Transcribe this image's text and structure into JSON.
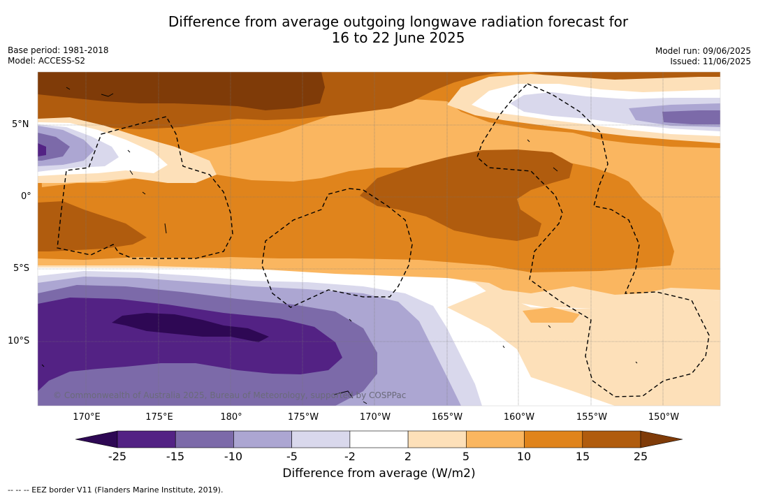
{
  "title_line1": "Difference from average outgoing longwave radiation forecast for",
  "title_line2": "16 to 22 June 2025",
  "base_period": "Base period: 1981-2018",
  "model": "Model: ACCESS-S2",
  "model_run": "Model run: 09/06/2025",
  "issued": "Issued: 11/06/2025",
  "lat_labels": [
    "5°N",
    "0°",
    "5°S",
    "10°S"
  ],
  "lon_labels": [
    "170°E",
    "175°E",
    "180°",
    "175°W",
    "170°W",
    "165°W",
    "160°W",
    "155°W",
    "150°W"
  ],
  "copyright": "© Commonwealth of Australia 2025, Bureau of Meteorology, supported by COSPPac",
  "colorbar": {
    "ticks": [
      "-25",
      "-15",
      "-10",
      "-5",
      "-2",
      "2",
      "5",
      "10",
      "15",
      "25"
    ],
    "colors": [
      "#2e0854",
      "#532284",
      "#7c6aa9",
      "#aca6d2",
      "#d9d8ec",
      "#ffffff",
      "#fde0b9",
      "#fab660",
      "#e0841c",
      "#b05c0e",
      "#7f3b08"
    ],
    "label": "Difference from average (W/m2)"
  },
  "legend_note": "--  --  -- EEZ border V11 (Flanders Marine Institute, 2019)."
}
